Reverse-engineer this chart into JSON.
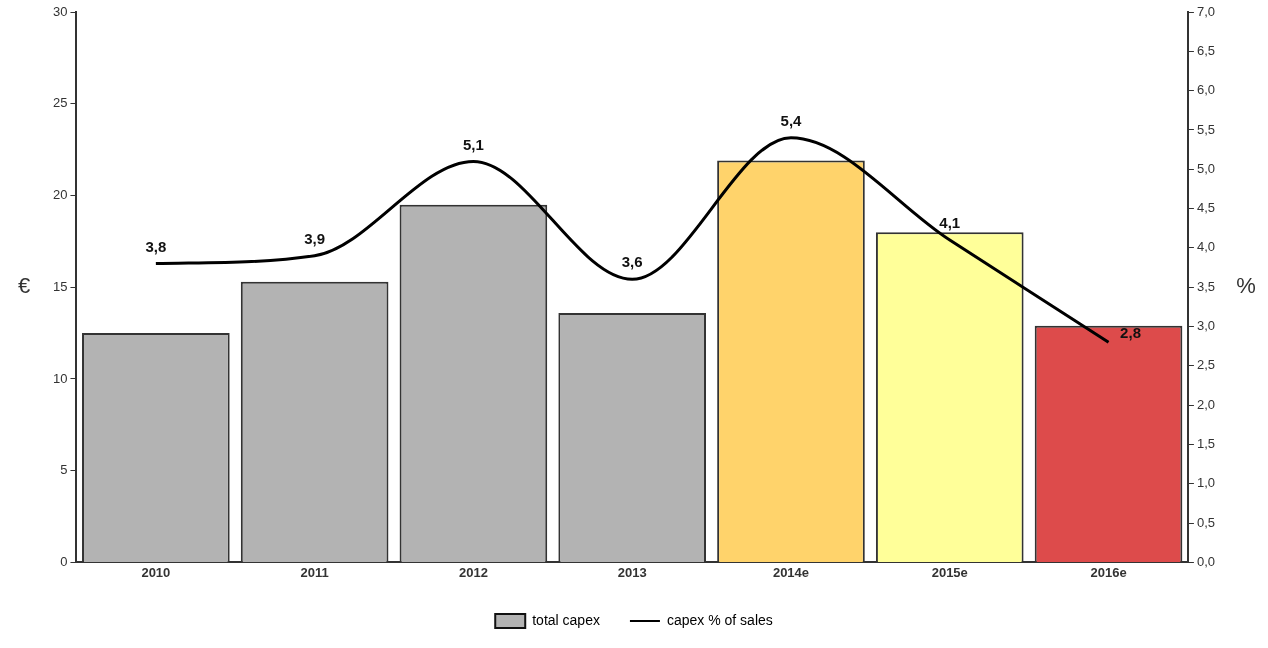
{
  "chart_data": {
    "type": "bar",
    "categories": [
      "2010",
      "2011",
      "2012",
      "2013",
      "2014e",
      "2015e",
      "2016e"
    ],
    "series": [
      {
        "name": "total capex",
        "color": "#b3b3b3",
        "colors": [
          "#b3b3b3",
          "#b3b3b3",
          "#b3b3b3",
          "#b3b3b3",
          "#ffd36b",
          "#ffff99",
          "#dd4b4b"
        ],
        "values": [
          12.5,
          15.3,
          19.5,
          13.6,
          21.9,
          18.0,
          12.9
        ]
      },
      {
        "name": "capex % of sales",
        "type": "line",
        "axis": "y2",
        "color": "#000000",
        "values": [
          3.8,
          3.9,
          5.1,
          3.6,
          5.4,
          4.1,
          2.8
        ],
        "value_labels": [
          "3,8",
          "3,9",
          "5,1",
          "3,6",
          "5,4",
          "4,1",
          "2,8"
        ]
      }
    ],
    "ylabel": "€",
    "y2label": "%",
    "ylim": [
      0,
      30
    ],
    "yticks": [
      0,
      5,
      10,
      15,
      20,
      25,
      30
    ],
    "y2lim": [
      0,
      7
    ],
    "y2ticks": [
      {
        "value": 0,
        "label": "0,0"
      },
      {
        "value": 0.5,
        "label": "0,5"
      },
      {
        "value": 1,
        "label": "1,0"
      },
      {
        "value": 1.5,
        "label": "1,5"
      },
      {
        "value": 2,
        "label": "2,0"
      },
      {
        "value": 2.5,
        "label": "2,5"
      },
      {
        "value": 3,
        "label": "3,0"
      },
      {
        "value": 3.5,
        "label": "3,5"
      },
      {
        "value": 4,
        "label": "4,0"
      },
      {
        "value": 4.5,
        "label": "4,5"
      },
      {
        "value": 5,
        "label": "5,0"
      },
      {
        "value": 5.5,
        "label": "5,5"
      },
      {
        "value": 6,
        "label": "6,0"
      },
      {
        "value": 6.5,
        "label": "6,5"
      },
      {
        "value": 7,
        "label": "7,0"
      }
    ],
    "grid": false,
    "legend": "bottom",
    "marker": "none"
  }
}
